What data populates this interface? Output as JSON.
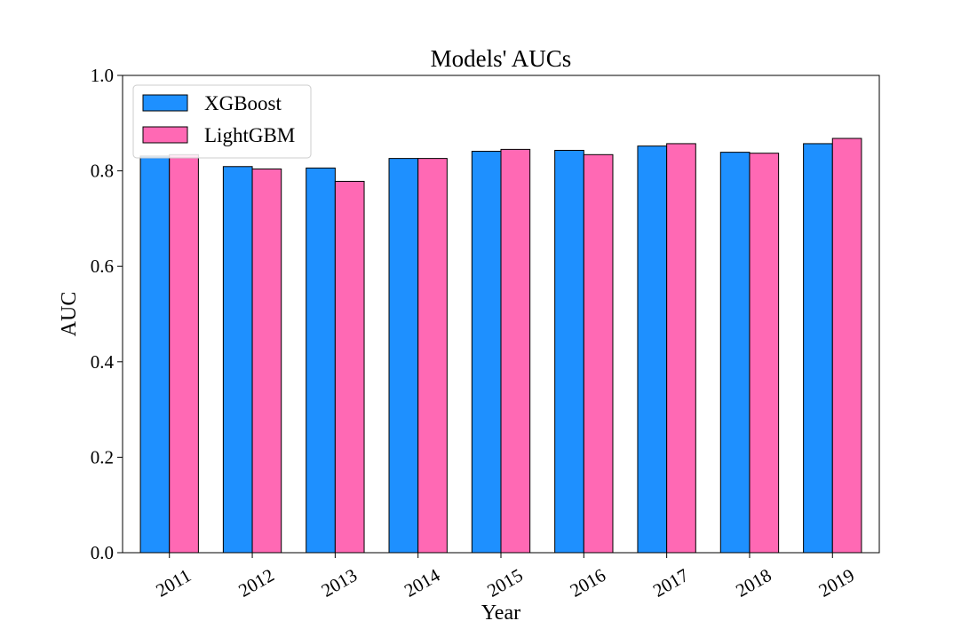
{
  "chart_data": {
    "type": "bar",
    "title": "Models' AUCs",
    "xlabel": "Year",
    "ylabel": "AUC",
    "ylim": [
      0,
      1.0
    ],
    "yticks": [
      "0.0",
      "0.2",
      "0.4",
      "0.6",
      "0.8",
      "1.0"
    ],
    "categories": [
      "2011",
      "2012",
      "2013",
      "2014",
      "2015",
      "2016",
      "2017",
      "2018",
      "2019"
    ],
    "series": [
      {
        "name": "XGBoost",
        "color": "#1e90ff",
        "values": [
          0.831,
          0.809,
          0.806,
          0.826,
          0.841,
          0.843,
          0.852,
          0.839,
          0.857
        ]
      },
      {
        "name": "LightGBM",
        "color": "#ff69b4",
        "values": [
          0.834,
          0.804,
          0.778,
          0.826,
          0.845,
          0.834,
          0.857,
          0.837,
          0.868
        ]
      }
    ],
    "legend_position": "top-left",
    "grid": false
  }
}
